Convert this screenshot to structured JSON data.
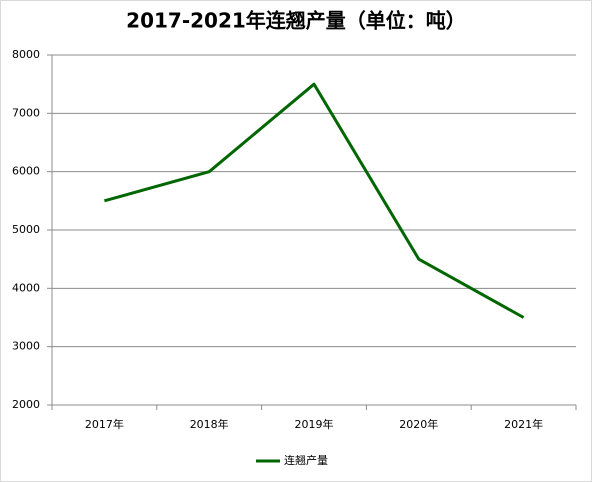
{
  "chart_data": {
    "type": "line",
    "title": "2017-2021年连翘产量（单位：吨）",
    "categories": [
      "2017年",
      "2018年",
      "2019年",
      "2020年",
      "2021年"
    ],
    "series": [
      {
        "name": "连翘产量",
        "color": "#006600",
        "values": [
          5500,
          6000,
          7500,
          4500,
          3500
        ]
      }
    ],
    "ylim": [
      2000,
      8000
    ],
    "yticks": [
      2000,
      3000,
      4000,
      5000,
      6000,
      7000,
      8000
    ],
    "grid": true,
    "legend": "bottom"
  }
}
